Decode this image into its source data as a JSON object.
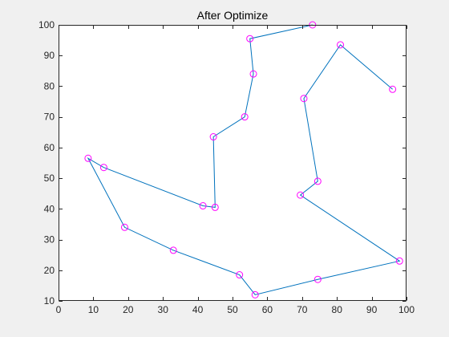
{
  "chart_data": {
    "type": "line",
    "title": "After Optimize",
    "xlabel": "",
    "ylabel": "",
    "xlim": [
      0,
      100
    ],
    "ylim": [
      10,
      100
    ],
    "x_ticks": [
      0,
      10,
      20,
      30,
      40,
      50,
      60,
      70,
      80,
      90,
      100
    ],
    "y_ticks": [
      10,
      20,
      30,
      40,
      50,
      60,
      70,
      80,
      90,
      100
    ],
    "grid": false,
    "markers": "circle",
    "line_color": "#0072BD",
    "marker_color": "#FF00FF",
    "series": [
      {
        "x": [
          96,
          81,
          70.5,
          74.5,
          69.5,
          98,
          74.5,
          56.5,
          52,
          33,
          19,
          8.5,
          13,
          41.5,
          45,
          44.5,
          53.5,
          56,
          55,
          73
        ],
        "y": [
          79,
          93.5,
          76,
          49,
          44.5,
          23,
          17,
          12,
          18.5,
          26.5,
          34,
          56.5,
          53.5,
          41,
          40.5,
          63.5,
          70,
          84,
          95.5,
          100
        ]
      }
    ]
  },
  "colors": {
    "background": "#f0f0f0",
    "axes_background": "#ffffff",
    "axis_color": "#262626"
  }
}
